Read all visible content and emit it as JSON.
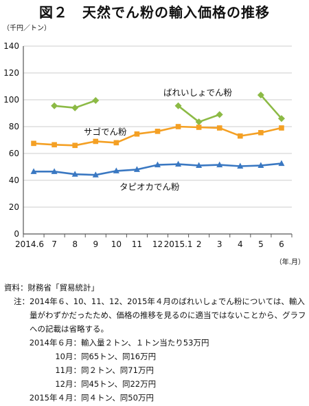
{
  "title": "図２　天然でん粉の輸入価格の推移",
  "colors": {
    "sago": "#f4a024",
    "tapioca": "#3a78c2",
    "potato": "#8cba45",
    "grid": "#bdbdbd",
    "axis": "#555555"
  },
  "chart_data": {
    "type": "line",
    "y_unit_label": "（千円／トン）",
    "x_unit_label": "（年.月）",
    "categories": [
      "2014.6",
      "7",
      "8",
      "9",
      "10",
      "11",
      "12",
      "2015.1",
      "2",
      "3",
      "4",
      "5",
      "6"
    ],
    "ylim": [
      0,
      140
    ],
    "yticks": [
      0,
      20,
      40,
      60,
      80,
      100,
      120,
      140
    ],
    "grid": true,
    "series": [
      {
        "name": "ばれいしょでん粉",
        "color": "#8cba45",
        "marker": "diamond",
        "values": [
          null,
          95.5,
          94,
          99.5,
          null,
          null,
          null,
          95.5,
          83.5,
          89,
          null,
          103.5,
          86
        ]
      },
      {
        "name": "サゴでん粉",
        "color": "#f4a024",
        "marker": "square",
        "values": [
          67.5,
          66.5,
          66,
          69,
          68,
          74.5,
          76.5,
          80,
          79.5,
          79,
          73,
          75.5,
          79
        ]
      },
      {
        "name": "タピオカでん粉",
        "color": "#3a78c2",
        "marker": "triangle",
        "values": [
          46.5,
          46.5,
          44.5,
          44,
          47,
          48,
          51.5,
          52,
          51,
          51.5,
          50.5,
          51,
          52.5
        ]
      }
    ]
  },
  "notes": {
    "source_label": "資料：",
    "source_text": "財務省「貿易統計」",
    "note_label": "注：",
    "note_text": "2014年６、10、11、12、2015年４月のばれいしょでん粉については、輸入量がわずかだったため、価格の推移を見るのに適当ではないことから、グラフへの記載は省略する。",
    "details": [
      {
        "label": "2014年６月：",
        "text": "輸入量２トン、１トン当たり53万円"
      },
      {
        "label": "10月：",
        "text": "同65トン、同16万円"
      },
      {
        "label": "11月：",
        "text": "同２トン、同71万円"
      },
      {
        "label": "12月：",
        "text": "同45トン、同22万円"
      },
      {
        "label": "2015年４月：",
        "text": "同４トン、同50万円"
      }
    ]
  }
}
